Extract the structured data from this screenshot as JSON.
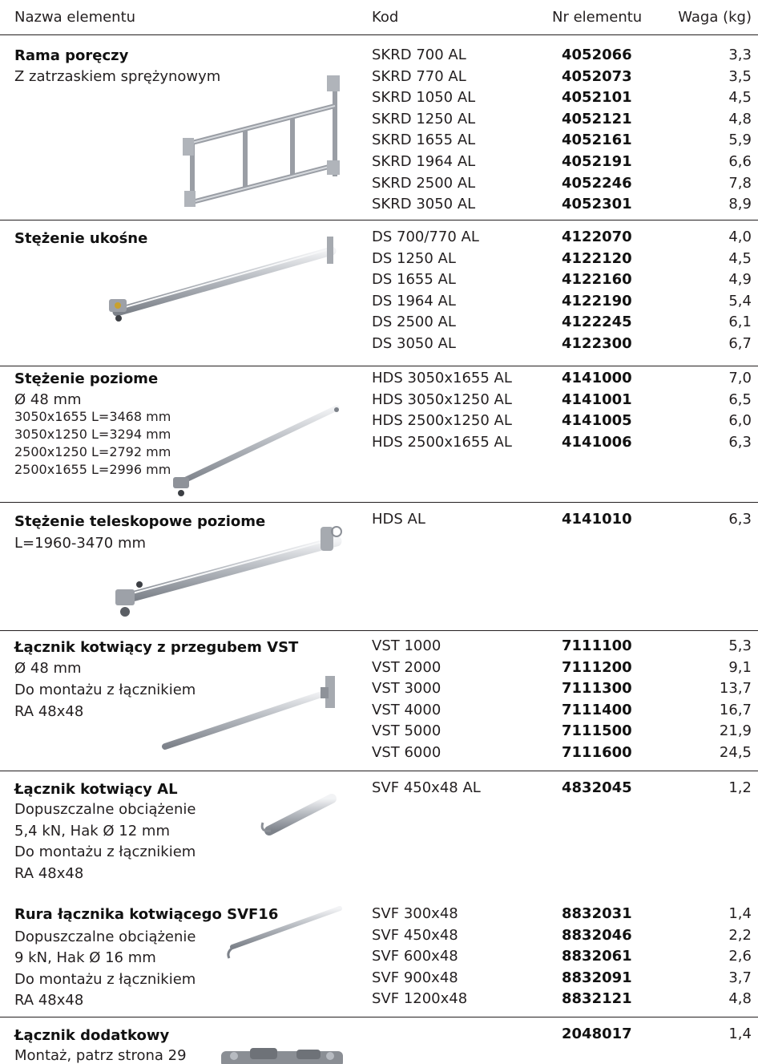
{
  "header": {
    "name": "Nazwa elementu",
    "code": "Kod",
    "nr": "Nr elementu",
    "weight": "Waga (kg)"
  },
  "sections": [
    {
      "title": "Rama poręczy",
      "desc": [
        "Z zatrzaskiem sprężynowym"
      ],
      "image": "railing-frame-image",
      "rows": [
        {
          "code": "SKRD 700 AL",
          "nr": "4052066",
          "weight": "3,3"
        },
        {
          "code": "SKRD 770 AL",
          "nr": "4052073",
          "weight": "3,5"
        },
        {
          "code": "SKRD 1050 AL",
          "nr": "4052101",
          "weight": "4,5"
        },
        {
          "code": "SKRD 1250 AL",
          "nr": "4052121",
          "weight": "4,8"
        },
        {
          "code": "SKRD 1655 AL",
          "nr": "4052161",
          "weight": "5,9"
        },
        {
          "code": "SKRD 1964 AL",
          "nr": "4052191",
          "weight": "6,6"
        },
        {
          "code": "SKRD 2500 AL",
          "nr": "4052246",
          "weight": "7,8"
        },
        {
          "code": "SKRD 3050 AL",
          "nr": "4052301",
          "weight": "8,9"
        }
      ]
    },
    {
      "title": "Stężenie ukośne",
      "desc": [],
      "image": "diagonal-brace-image",
      "rows": [
        {
          "code": "DS 700/770 AL",
          "nr": "4122070",
          "weight": "4,0"
        },
        {
          "code": "DS 1250 AL",
          "nr": "4122120",
          "weight": "4,5"
        },
        {
          "code": "DS 1655 AL",
          "nr": "4122160",
          "weight": "4,9"
        },
        {
          "code": "DS 1964 AL",
          "nr": "4122190",
          "weight": "5,4"
        },
        {
          "code": "DS 2500 AL",
          "nr": "4122245",
          "weight": "6,1"
        },
        {
          "code": "DS 3050 AL",
          "nr": "4122300",
          "weight": "6,7"
        }
      ]
    },
    {
      "title": "Stężenie poziome",
      "desc": [
        "Ø 48 mm"
      ],
      "desc_small": [
        "3050x1655 L=3468 mm",
        "3050x1250 L=3294 mm",
        "2500x1250 L=2792 mm",
        "2500x1655 L=2996 mm"
      ],
      "image": "horizontal-brace-image",
      "rows": [
        {
          "code": "HDS 3050x1655 AL",
          "nr": "4141000",
          "weight": "7,0"
        },
        {
          "code": "HDS 3050x1250 AL",
          "nr": "4141001",
          "weight": "6,5"
        },
        {
          "code": "HDS 2500x1250 AL",
          "nr": "4141005",
          "weight": "6,0"
        },
        {
          "code": "HDS 2500x1655 AL",
          "nr": "4141006",
          "weight": "6,3"
        }
      ]
    },
    {
      "title": "Stężenie teleskopowe poziome",
      "desc": [
        "L=1960-3470 mm"
      ],
      "image": "telescopic-brace-image",
      "rows": [
        {
          "code": "HDS AL",
          "nr": "4141010",
          "weight": "6,3"
        }
      ]
    },
    {
      "title": "Łącznik kotwiący z przegubem VST",
      "desc": [
        "Ø 48 mm",
        "Do montażu z łącznikiem",
        "RA 48x48"
      ],
      "image": "vst-anchor-image",
      "rows": [
        {
          "code": "VST 1000",
          "nr": "7111100",
          "weight": "5,3"
        },
        {
          "code": "VST 2000",
          "nr": "7111200",
          "weight": "9,1"
        },
        {
          "code": "VST 3000",
          "nr": "7111300",
          "weight": "13,7"
        },
        {
          "code": "VST 4000",
          "nr": "7111400",
          "weight": "16,7"
        },
        {
          "code": "VST 5000",
          "nr": "7111500",
          "weight": "21,9"
        },
        {
          "code": "VST 6000",
          "nr": "7111600",
          "weight": "24,5"
        }
      ]
    },
    {
      "title": "Łącznik kotwiący AL",
      "desc": [
        "Dopuszczalne obciążenie",
        "5,4 kN, Hak Ø 12 mm",
        "Do montażu z łącznikiem",
        "RA 48x48"
      ],
      "image": "anchor-al-image",
      "rows": [
        {
          "code": "SVF 450x48 AL",
          "nr": "4832045",
          "weight": "1,2"
        }
      ]
    },
    {
      "title": "Rura łącznika kotwiącego SVF16",
      "desc": [
        "Dopuszczalne obciążenie",
        "9 kN, Hak Ø 16 mm",
        "Do montażu z łącznikiem",
        "RA 48x48"
      ],
      "image": "svf16-tube-image",
      "rows": [
        {
          "code": "SVF 300x48",
          "nr": "8832031",
          "weight": "1,4"
        },
        {
          "code": "SVF 450x48",
          "nr": "8832046",
          "weight": "2,2"
        },
        {
          "code": "SVF 600x48",
          "nr": "8832061",
          "weight": "2,6"
        },
        {
          "code": "SVF 900x48",
          "nr": "8832091",
          "weight": "3,7"
        },
        {
          "code": "SVF 1200x48",
          "nr": "8832121",
          "weight": "4,8"
        }
      ]
    },
    {
      "title": "Łącznik dodatkowy",
      "desc": [
        "Montaż, patrz strona 29"
      ],
      "image": "extra-coupler-image",
      "rows": [
        {
          "code": "",
          "nr": "2048017",
          "weight": "1,4"
        }
      ]
    }
  ]
}
